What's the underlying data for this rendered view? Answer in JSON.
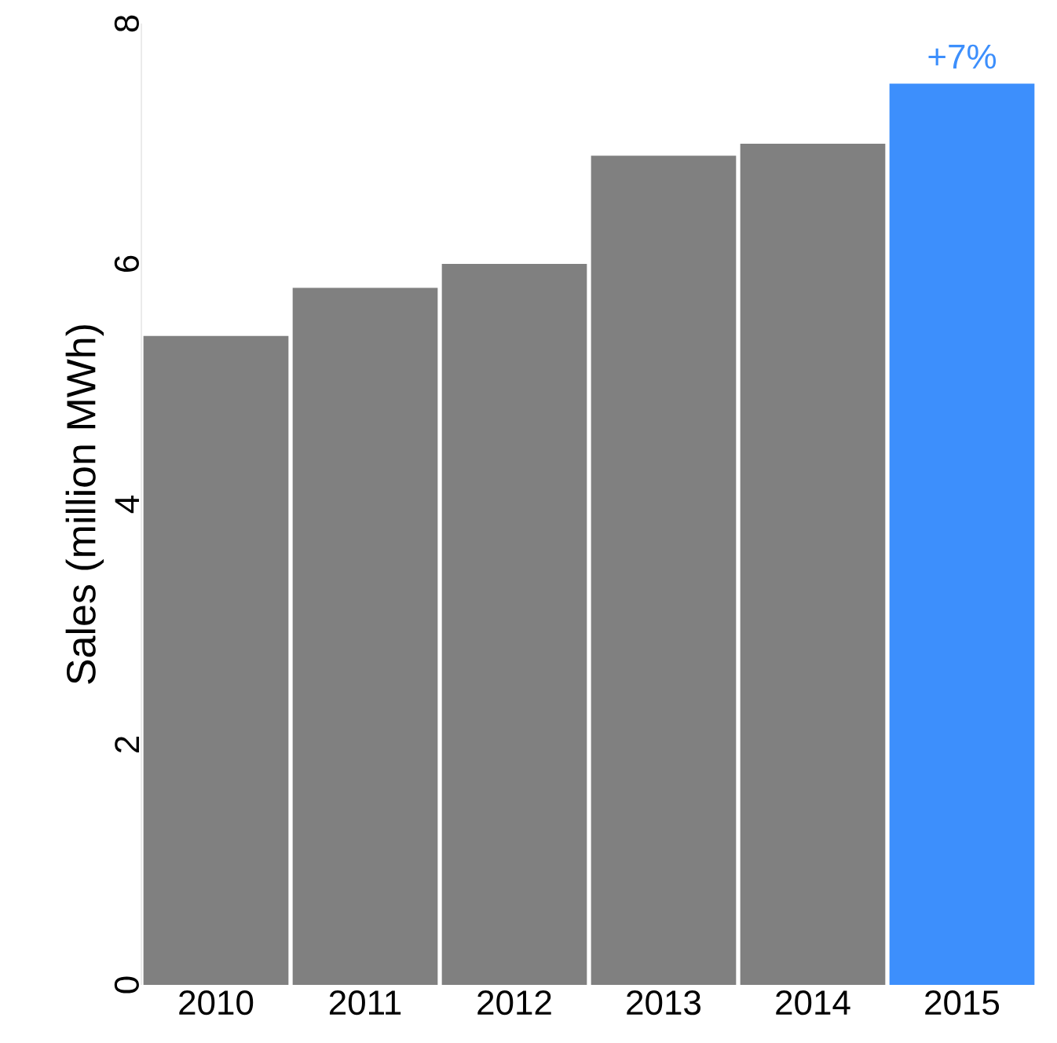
{
  "chart_data": {
    "type": "bar",
    "ylabel": "Sales (million MWh)",
    "categories": [
      "2010",
      "2011",
      "2012",
      "2013",
      "2014",
      "2015"
    ],
    "values": [
      5.4,
      5.8,
      6.0,
      6.9,
      7.0,
      7.5
    ],
    "colors": [
      "#808080",
      "#808080",
      "#808080",
      "#808080",
      "#808080",
      "#3d8ffc"
    ],
    "ylim": [
      0,
      8
    ],
    "yticks": [
      0,
      2,
      4,
      6,
      8
    ],
    "grid": false,
    "annotations": [
      {
        "text": "+7%",
        "x": "2015",
        "y": 7.5
      }
    ]
  }
}
